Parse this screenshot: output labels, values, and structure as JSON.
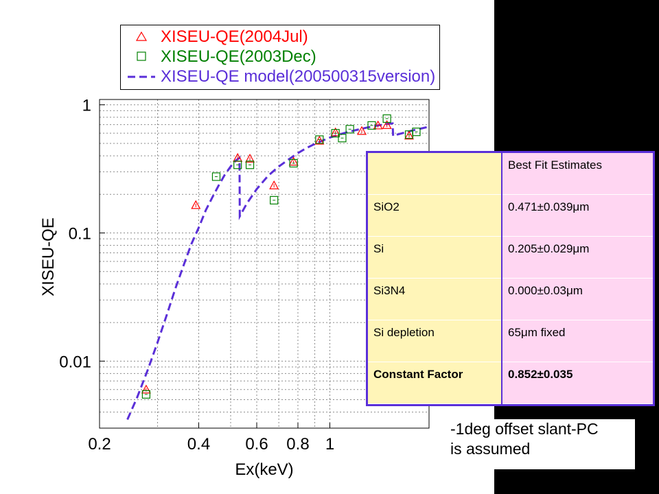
{
  "chart_data": {
    "type": "scatter",
    "xlabel": "Ex(keV)",
    "ylabel": "XISEU-QE",
    "xscale": "log",
    "yscale": "log",
    "xlim": [
      0.2,
      2.0
    ],
    "ylim": [
      0.003,
      1.1
    ],
    "grid": true,
    "legend_position": "top",
    "x_ticks": [
      0.2,
      0.4,
      0.6,
      0.8,
      1
    ],
    "x_tick_labels": [
      "0.2",
      "0.4",
      "0.6",
      "0.8",
      "1"
    ],
    "y_ticks": [
      0.01,
      0.1,
      1
    ],
    "y_tick_labels": [
      "0.01",
      "0.1",
      "1"
    ],
    "series": [
      {
        "name": "XISEU-QE(2004Jul)",
        "marker": "triangle",
        "color": "#ff0000",
        "points": [
          [
            0.277,
            0.006
          ],
          [
            0.392,
            0.165
          ],
          [
            0.525,
            0.385
          ],
          [
            0.572,
            0.38
          ],
          [
            0.677,
            0.235
          ],
          [
            0.776,
            0.36
          ],
          [
            0.93,
            0.525
          ],
          [
            1.04,
            0.61
          ],
          [
            1.25,
            0.625
          ],
          [
            1.4,
            0.69
          ],
          [
            1.49,
            0.695
          ],
          [
            1.74,
            0.575
          ]
        ]
      },
      {
        "name": "XISEU-QE(2003Dec)",
        "marker": "square",
        "color": "#008000",
        "points": [
          [
            0.277,
            0.0055
          ],
          [
            0.452,
            0.275
          ],
          [
            0.525,
            0.34
          ],
          [
            0.572,
            0.34
          ],
          [
            0.677,
            0.18
          ],
          [
            0.776,
            0.35
          ],
          [
            0.93,
            0.535
          ],
          [
            1.04,
            0.6
          ],
          [
            1.09,
            0.55
          ],
          [
            1.15,
            0.645
          ],
          [
            1.34,
            0.69
          ],
          [
            1.49,
            0.78
          ],
          [
            1.74,
            0.585
          ],
          [
            1.83,
            0.615
          ]
        ]
      },
      {
        "name": "XISEU-QE model(200500315version)",
        "line_style": "dashed",
        "color": "#5a2fd8",
        "points": [
          [
            0.243,
            0.0035
          ],
          [
            0.26,
            0.0052
          ],
          [
            0.28,
            0.0085
          ],
          [
            0.3,
            0.014
          ],
          [
            0.32,
            0.023
          ],
          [
            0.34,
            0.037
          ],
          [
            0.36,
            0.056
          ],
          [
            0.38,
            0.082
          ],
          [
            0.4,
            0.11
          ],
          [
            0.42,
            0.15
          ],
          [
            0.44,
            0.19
          ],
          [
            0.46,
            0.235
          ],
          [
            0.48,
            0.285
          ],
          [
            0.5,
            0.33
          ],
          [
            0.52,
            0.37
          ],
          [
            0.532,
            0.385
          ],
          [
            0.533,
            0.135
          ],
          [
            0.56,
            0.17
          ],
          [
            0.6,
            0.22
          ],
          [
            0.65,
            0.28
          ],
          [
            0.7,
            0.33
          ],
          [
            0.75,
            0.375
          ],
          [
            0.8,
            0.42
          ],
          [
            0.85,
            0.46
          ],
          [
            0.9,
            0.495
          ],
          [
            0.95,
            0.525
          ],
          [
            1.0,
            0.555
          ],
          [
            1.1,
            0.6
          ],
          [
            1.2,
            0.635
          ],
          [
            1.3,
            0.665
          ],
          [
            1.4,
            0.69
          ],
          [
            1.5,
            0.71
          ],
          [
            1.55,
            0.715
          ],
          [
            1.556,
            0.57
          ],
          [
            1.6,
            0.585
          ],
          [
            1.7,
            0.61
          ],
          [
            1.8,
            0.635
          ],
          [
            1.9,
            0.655
          ],
          [
            2.0,
            0.675
          ]
        ]
      }
    ]
  },
  "legend": {
    "entries": [
      "XISEU-QE(2004Jul)",
      "XISEU-QE(2003Dec)",
      "XISEU-QE model(200500315version)"
    ]
  },
  "fit_table": {
    "header": "Best Fit Estimates",
    "rows": [
      {
        "label": "SiO2",
        "value": "0.471±0.039μm"
      },
      {
        "label": "Si",
        "value": "0.205±0.029μm"
      },
      {
        "label": "Si3N4",
        "value": "0.000±0.03μm"
      },
      {
        "label": "Si depletion",
        "value": "65μm fixed"
      },
      {
        "label": "Constant Factor",
        "value": "0.852±0.035"
      }
    ]
  },
  "note": {
    "line1": "-1deg offset slant-PC",
    "line2": "is assumed"
  }
}
